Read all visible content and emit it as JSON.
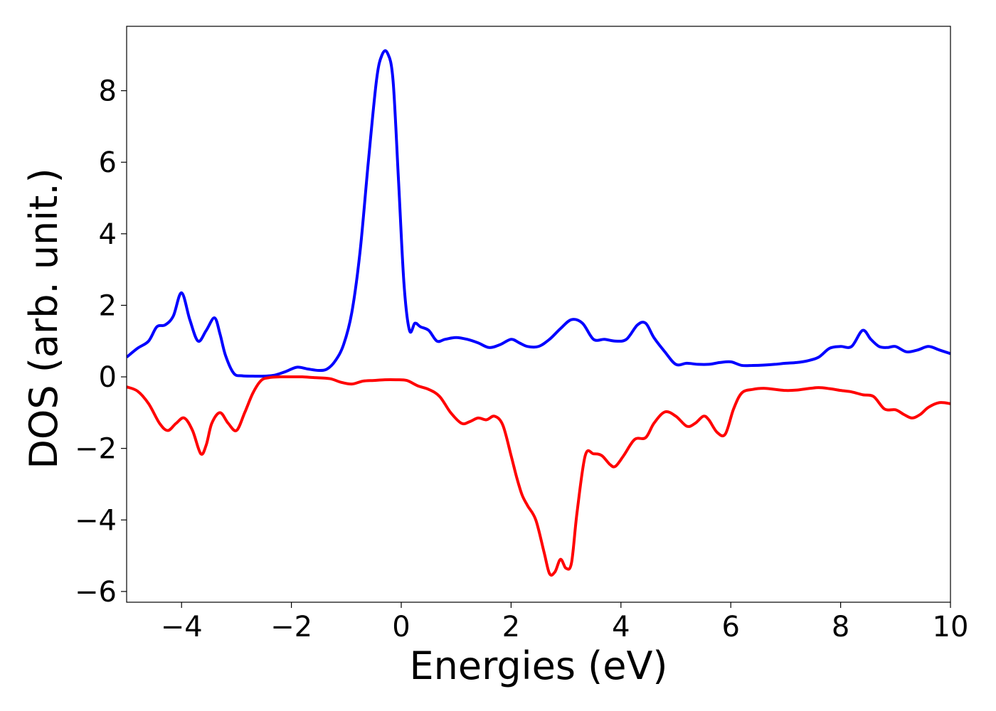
{
  "chart_data": {
    "type": "line",
    "title": "",
    "xlabel": "Energies (eV)",
    "ylabel": "DOS (arb. unit.)",
    "xlim": [
      -5,
      10
    ],
    "ylim": [
      -6.3,
      9.8
    ],
    "xticks": [
      {
        "value": -4,
        "label": "−4"
      },
      {
        "value": -2,
        "label": "−2"
      },
      {
        "value": 0,
        "label": "0"
      },
      {
        "value": 2,
        "label": "2"
      },
      {
        "value": 4,
        "label": "4"
      },
      {
        "value": 6,
        "label": "6"
      },
      {
        "value": 8,
        "label": "8"
      },
      {
        "value": 10,
        "label": "10"
      }
    ],
    "yticks": [
      {
        "value": -6,
        "label": "−6"
      },
      {
        "value": -4,
        "label": "−4"
      },
      {
        "value": -2,
        "label": "−2"
      },
      {
        "value": 0,
        "label": "0"
      },
      {
        "value": 2,
        "label": "2"
      },
      {
        "value": 4,
        "label": "4"
      },
      {
        "value": 6,
        "label": "6"
      },
      {
        "value": 8,
        "label": "8"
      }
    ],
    "grid": false,
    "legend": "none",
    "series": [
      {
        "color": "#0000ff",
        "x": [
          -5.0,
          -4.8,
          -4.6,
          -4.45,
          -4.3,
          -4.15,
          -4.0,
          -3.85,
          -3.7,
          -3.55,
          -3.4,
          -3.3,
          -3.2,
          -3.05,
          -2.9,
          -2.7,
          -2.5,
          -2.3,
          -2.1,
          -1.9,
          -1.7,
          -1.5,
          -1.35,
          -1.2,
          -1.05,
          -0.9,
          -0.75,
          -0.6,
          -0.45,
          -0.35,
          -0.25,
          -0.15,
          -0.05,
          0.05,
          0.15,
          0.25,
          0.35,
          0.5,
          0.65,
          0.8,
          1.0,
          1.2,
          1.4,
          1.6,
          1.8,
          2.0,
          2.15,
          2.3,
          2.5,
          2.7,
          2.9,
          3.1,
          3.3,
          3.5,
          3.7,
          3.9,
          4.1,
          4.3,
          4.45,
          4.6,
          4.8,
          5.0,
          5.2,
          5.4,
          5.6,
          5.8,
          6.0,
          6.2,
          6.4,
          6.6,
          6.8,
          7.0,
          7.2,
          7.4,
          7.6,
          7.8,
          8.0,
          8.2,
          8.4,
          8.55,
          8.7,
          8.85,
          9.0,
          9.2,
          9.4,
          9.6,
          9.8,
          10.0
        ],
        "y": [
          0.55,
          0.8,
          1.0,
          1.4,
          1.45,
          1.7,
          2.35,
          1.6,
          1.0,
          1.3,
          1.65,
          1.2,
          0.6,
          0.1,
          0.03,
          0.02,
          0.02,
          0.05,
          0.15,
          0.27,
          0.22,
          0.18,
          0.22,
          0.45,
          0.9,
          1.8,
          3.5,
          6.0,
          8.3,
          9.0,
          9.05,
          8.3,
          5.5,
          2.6,
          1.3,
          1.5,
          1.4,
          1.3,
          1.0,
          1.05,
          1.1,
          1.05,
          0.95,
          0.82,
          0.9,
          1.05,
          0.95,
          0.85,
          0.85,
          1.05,
          1.35,
          1.6,
          1.5,
          1.05,
          1.05,
          1.0,
          1.05,
          1.45,
          1.5,
          1.1,
          0.7,
          0.35,
          0.38,
          0.35,
          0.35,
          0.4,
          0.42,
          0.32,
          0.32,
          0.33,
          0.35,
          0.38,
          0.4,
          0.45,
          0.55,
          0.8,
          0.85,
          0.85,
          1.3,
          1.05,
          0.85,
          0.82,
          0.85,
          0.7,
          0.75,
          0.85,
          0.75,
          0.65
        ]
      },
      {
        "color": "#ff0000",
        "x": [
          -5.0,
          -4.8,
          -4.6,
          -4.4,
          -4.25,
          -4.1,
          -3.95,
          -3.8,
          -3.65,
          -3.55,
          -3.45,
          -3.3,
          -3.15,
          -3.0,
          -2.85,
          -2.7,
          -2.55,
          -2.4,
          -2.2,
          -2.0,
          -1.8,
          -1.6,
          -1.3,
          -1.1,
          -0.9,
          -0.7,
          -0.5,
          -0.3,
          -0.1,
          0.1,
          0.3,
          0.5,
          0.7,
          0.9,
          1.1,
          1.25,
          1.4,
          1.55,
          1.7,
          1.85,
          2.0,
          2.1,
          2.2,
          2.3,
          2.45,
          2.6,
          2.7,
          2.8,
          2.9,
          3.0,
          3.1,
          3.2,
          3.35,
          3.5,
          3.65,
          3.8,
          3.9,
          4.05,
          4.25,
          4.45,
          4.6,
          4.8,
          5.0,
          5.2,
          5.35,
          5.5,
          5.6,
          5.75,
          5.9,
          6.05,
          6.2,
          6.4,
          6.6,
          6.8,
          7.0,
          7.2,
          7.4,
          7.6,
          7.8,
          8.0,
          8.2,
          8.4,
          8.6,
          8.8,
          9.0,
          9.15,
          9.3,
          9.45,
          9.6,
          9.8,
          10.0
        ],
        "y": [
          -0.28,
          -0.4,
          -0.75,
          -1.3,
          -1.5,
          -1.3,
          -1.15,
          -1.5,
          -2.15,
          -1.9,
          -1.3,
          -1.0,
          -1.3,
          -1.5,
          -1.0,
          -0.45,
          -0.1,
          -0.02,
          0.0,
          0.0,
          0.0,
          -0.02,
          -0.05,
          -0.15,
          -0.2,
          -0.12,
          -0.1,
          -0.08,
          -0.08,
          -0.1,
          -0.25,
          -0.35,
          -0.55,
          -1.0,
          -1.3,
          -1.25,
          -1.15,
          -1.2,
          -1.1,
          -1.35,
          -2.2,
          -2.8,
          -3.3,
          -3.6,
          -4.0,
          -4.9,
          -5.5,
          -5.45,
          -5.1,
          -5.35,
          -5.2,
          -3.8,
          -2.2,
          -2.15,
          -2.2,
          -2.45,
          -2.5,
          -2.2,
          -1.75,
          -1.7,
          -1.3,
          -0.98,
          -1.1,
          -1.38,
          -1.3,
          -1.1,
          -1.2,
          -1.55,
          -1.6,
          -0.9,
          -0.45,
          -0.35,
          -0.32,
          -0.35,
          -0.38,
          -0.37,
          -0.33,
          -0.3,
          -0.33,
          -0.38,
          -0.42,
          -0.5,
          -0.55,
          -0.9,
          -0.92,
          -1.05,
          -1.15,
          -1.05,
          -0.85,
          -0.72,
          -0.75
        ]
      }
    ]
  }
}
